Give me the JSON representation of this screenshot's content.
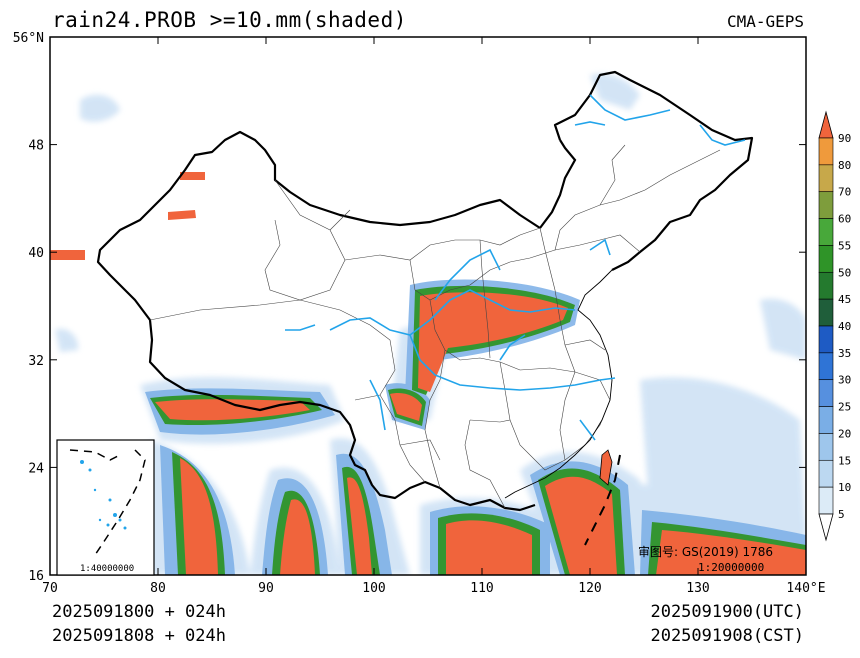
{
  "header": {
    "title": "rain24.PROB >=10.mm(shaded)",
    "source": "CMA-GEPS"
  },
  "map": {
    "lat_ticks": [
      {
        "value": 16,
        "label": "16"
      },
      {
        "value": 24,
        "label": "24"
      },
      {
        "value": 32,
        "label": "32"
      },
      {
        "value": 40,
        "label": "40"
      },
      {
        "value": 48,
        "label": "48"
      },
      {
        "value": 56,
        "label": "56°N"
      }
    ],
    "lon_ticks": [
      {
        "value": 70,
        "label": "70"
      },
      {
        "value": 80,
        "label": "80"
      },
      {
        "value": 90,
        "label": "90"
      },
      {
        "value": 100,
        "label": "100"
      },
      {
        "value": 110,
        "label": "110"
      },
      {
        "value": 120,
        "label": "120"
      },
      {
        "value": 130,
        "label": "130"
      },
      {
        "value": 140,
        "label": "140°E"
      }
    ],
    "approval": "审图号: GS(2019) 1786",
    "scale": "1:20000000",
    "inset_scale": "1:40000000"
  },
  "colorbar": {
    "levels": [
      "5",
      "10",
      "15",
      "20",
      "25",
      "30",
      "35",
      "40",
      "45",
      "50",
      "55",
      "60",
      "70",
      "80",
      "90"
    ],
    "colors": [
      "#ffffff",
      "#dcebf7",
      "#bcd8f1",
      "#9ec6ec",
      "#7aaee6",
      "#5690df",
      "#2f74d6",
      "#1e5bc4",
      "#1f5e3a",
      "#247a2e",
      "#2f9428",
      "#48a83a",
      "#7e9d3c",
      "#c7a84a",
      "#ef9a3c",
      "#f0643c"
    ]
  },
  "footer": {
    "init_utc": "2025091800 + 024h",
    "init_cst": "2025091808 + 024h",
    "valid_utc": "2025091900(UTC)",
    "valid_cst": "2025091908(CST)"
  }
}
